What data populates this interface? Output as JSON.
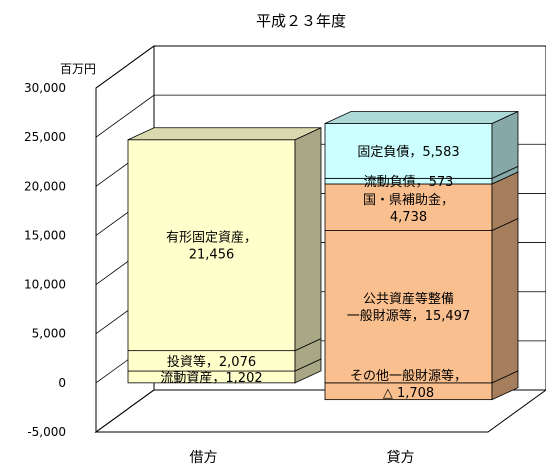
{
  "chart_data": {
    "type": "bar",
    "stacked": true,
    "three_d": true,
    "title": "平成２３年度",
    "ylabel": "百万円",
    "ylim": [
      -5000,
      30000
    ],
    "yticks": [
      -5000,
      0,
      5000,
      10000,
      15000,
      20000,
      25000,
      30000
    ],
    "ytick_labels": [
      "-5,000",
      "0",
      "5,000",
      "10,000",
      "15,000",
      "20,000",
      "25,000",
      "30,000"
    ],
    "categories": [
      "借方",
      "貸方"
    ],
    "grid": true,
    "legend": "none",
    "stacks": [
      {
        "category": "借方",
        "segments": [
          {
            "name": "流動資産",
            "value": 1202,
            "color": "#ffffcc",
            "label": [
              "流動資産，1,202"
            ]
          },
          {
            "name": "投資等",
            "value": 2076,
            "color": "#ffffcc",
            "label": [
              "投資等，2,076"
            ]
          },
          {
            "name": "有形固定資産",
            "value": 21456,
            "color": "#ffffcc",
            "label": [
              "有形固定資産，",
              "21,456"
            ]
          }
        ]
      },
      {
        "category": "貸方",
        "segments": [
          {
            "name": "その他一般財源等",
            "value": -1708,
            "color": "#fabf8f",
            "label": [
              "その他一般財源等，",
              "△ 1,708"
            ]
          },
          {
            "name": "公共資産等整備一般財源等",
            "value": 15497,
            "color": "#fabf8f",
            "label": [
              "公共資産等整備",
              "一般財源等，15,497"
            ]
          },
          {
            "name": "国・県補助金",
            "value": 4738,
            "color": "#fabf8f",
            "label": [
              "国・県補助金，",
              "4,738"
            ]
          },
          {
            "name": "流動負債",
            "value": 573,
            "color": "#ccffff",
            "label": [
              "流動負債，573"
            ]
          },
          {
            "name": "固定負債",
            "value": 5583,
            "color": "#ccffff",
            "label": [
              "固定負債，5,583"
            ]
          }
        ]
      }
    ]
  }
}
